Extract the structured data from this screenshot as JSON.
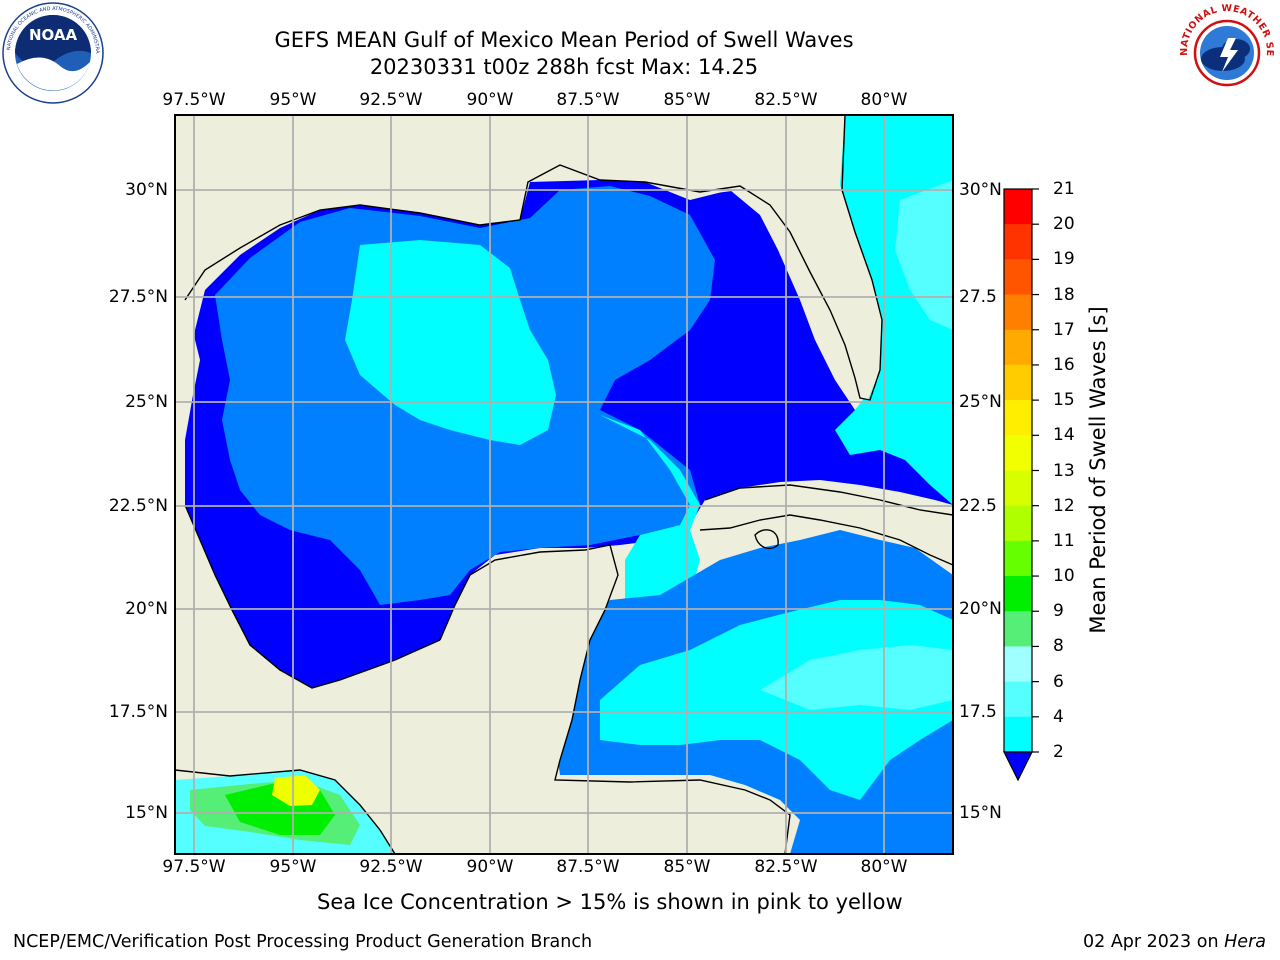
{
  "title_line1": "GEFS MEAN Gulf of Mexico Mean Period of Swell Waves",
  "title_line2": "20230331 t00z 288h fcst   Max: 14.25",
  "lon_labels": [
    "97.5°W",
    "95°W",
    "92.5°W",
    "90°W",
    "87.5°W",
    "85°W",
    "82.5°W",
    "80°W"
  ],
  "lat_labels_left": [
    "30°N",
    "27.5°N",
    "25°N",
    "22.5°N",
    "20°N",
    "17.5°N",
    "15°N"
  ],
  "lat_labels_right": [
    "30°N",
    "27.5",
    "25°N",
    "22.5",
    "20°N",
    "17.5",
    "15°N"
  ],
  "colorbar": {
    "label": "Mean Period of Swell Waves [s]",
    "ticks": [
      "21",
      "20",
      "19",
      "18",
      "17",
      "16",
      "15",
      "14",
      "13",
      "12",
      "11",
      "10",
      "9",
      "8",
      "6",
      "4",
      "2"
    ],
    "colors": [
      "#ff0000",
      "#ff3300",
      "#ff5500",
      "#ff8000",
      "#ffaa00",
      "#ffcc00",
      "#ffee00",
      "#f2ff00",
      "#d8ff00",
      "#b0ff00",
      "#66ff00",
      "#00ee00",
      "#55ee77",
      "#a0ffff",
      "#55ffff",
      "#00ffff",
      "#0080ff"
    ],
    "underflow_color": "#0000ff"
  },
  "map_colors": {
    "land": "#eeeedd",
    "level_2_4": "#0000ff",
    "level_4_6": "#0080ff",
    "level_6_8": "#00ffff",
    "level_8_9": "#55ffff",
    "green": "#00ee00",
    "yellow": "#eeff00"
  },
  "note": "Sea Ice Concentration > 15% is shown in pink to yellow",
  "footer_left": "NCEP/EMC/Verification Post Processing Product Generation Branch",
  "footer_right_date": "02 Apr 2023 on",
  "footer_right_host": "Hera",
  "logos": {
    "left": "noaa-logo",
    "left_text": "NATIONAL OCEANIC AND ATMOSPHERIC ADMINISTRATION · U.S. DEPARTMENT OF COMMERCE",
    "left_word": "NOAA",
    "right": "nws-logo",
    "right_text": "NATIONAL WEATHER SERVICE"
  }
}
